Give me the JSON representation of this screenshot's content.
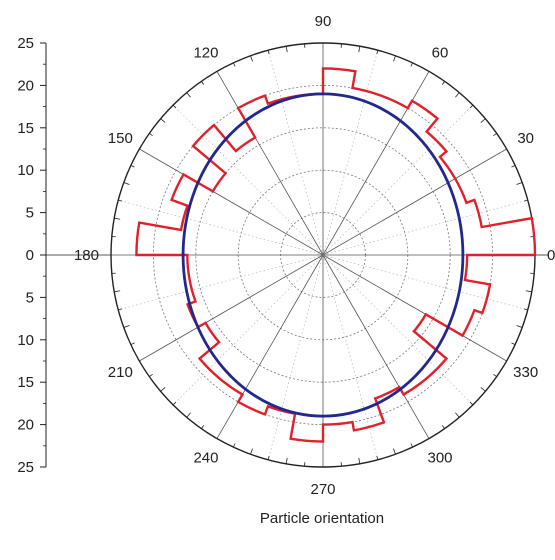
{
  "chart_data": {
    "type": "polar-step",
    "xlabel": "Particle orientation",
    "radial_axis": {
      "range": [
        0,
        25
      ],
      "ticks": [
        "25",
        "20",
        "15",
        "10",
        "5",
        "0",
        "5",
        "10",
        "15",
        "20",
        "25"
      ]
    },
    "angular_ticks": [
      "0",
      "30",
      "60",
      "90",
      "120",
      "150",
      "180",
      "210",
      "240",
      "270",
      "300",
      "330"
    ],
    "grid_rings": [
      5,
      10,
      15,
      20
    ],
    "colors": {
      "histogram": "#e0202a",
      "fit": "#22288c",
      "axis": "#222222"
    },
    "series": [
      {
        "kind": "histogram",
        "bin_width_deg": 10,
        "bins": [
          {
            "start": 0,
            "value": 25
          },
          {
            "start": 10,
            "value": 19
          },
          {
            "start": 20,
            "value": 18
          },
          {
            "start": 30,
            "value": 18
          },
          {
            "start": 40,
            "value": 19
          },
          {
            "start": 50,
            "value": 21
          },
          {
            "start": 60,
            "value": 20
          },
          {
            "start": 70,
            "value": 20
          },
          {
            "start": 80,
            "value": 22
          },
          {
            "start": 90,
            "value": 19
          },
          {
            "start": 100,
            "value": 19
          },
          {
            "start": 110,
            "value": 20
          },
          {
            "start": 120,
            "value": 16
          },
          {
            "start": 130,
            "value": 20
          },
          {
            "start": 140,
            "value": 15
          },
          {
            "start": 150,
            "value": 19
          },
          {
            "start": 160,
            "value": 17
          },
          {
            "start": 170,
            "value": 22
          },
          {
            "start": 180,
            "value": 16
          },
          {
            "start": 190,
            "value": 16
          },
          {
            "start": 200,
            "value": 17
          },
          {
            "start": 210,
            "value": 16
          },
          {
            "start": 220,
            "value": 19
          },
          {
            "start": 230,
            "value": 19
          },
          {
            "start": 240,
            "value": 20
          },
          {
            "start": 250,
            "value": 19
          },
          {
            "start": 260,
            "value": 22
          },
          {
            "start": 270,
            "value": 20
          },
          {
            "start": 280,
            "value": 21
          },
          {
            "start": 290,
            "value": 18
          },
          {
            "start": 300,
            "value": 19
          },
          {
            "start": 310,
            "value": 19
          },
          {
            "start": 320,
            "value": 14
          },
          {
            "start": 330,
            "value": 19
          },
          {
            "start": 340,
            "value": 20
          },
          {
            "start": 350,
            "value": 17
          }
        ]
      },
      {
        "kind": "fit",
        "shape": "ellipse",
        "semi_axis_horizontal": 16.5,
        "semi_axis_vertical": 19
      }
    ]
  }
}
